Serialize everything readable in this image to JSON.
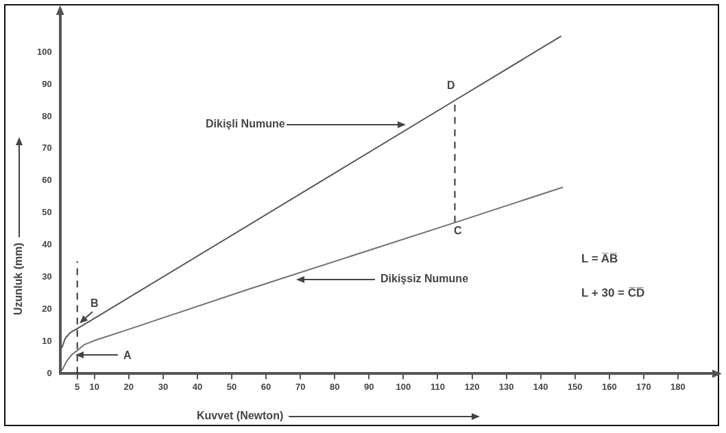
{
  "chart_data": {
    "type": "line",
    "xlabel": "Kuvvet (Newton)",
    "ylabel": "Uzunluk (mm)",
    "xlim": [
      0,
      190
    ],
    "xticks": [
      5,
      10,
      20,
      30,
      40,
      50,
      60,
      70,
      80,
      90,
      100,
      110,
      120,
      130,
      140,
      150,
      160,
      170,
      180
    ],
    "ylim": [
      0,
      112
    ],
    "yticks": [
      0,
      10,
      20,
      30,
      40,
      50,
      60,
      70,
      80,
      90,
      100
    ],
    "grid": false,
    "legend": false,
    "marker": "none",
    "series": [
      {
        "color": "#555555",
        "x": [
          0.5,
          1.5,
          3,
          5,
          10,
          115,
          146
        ],
        "values": [
          8,
          11,
          12.8,
          14,
          17.2,
          85,
          105
        ]
      },
      {
        "color": "#707070",
        "x": [
          0.5,
          2,
          3.5,
          5,
          7,
          10,
          20,
          55,
          115,
          146.5
        ],
        "values": [
          1,
          4,
          6,
          7.2,
          9,
          10.3,
          13.8,
          26.3,
          47,
          58
        ]
      },
      {
        "type": "line",
        "line_style": "dashed",
        "color": "#333333",
        "x": [
          5,
          5
        ],
        "values": [
          0,
          35
        ]
      },
      {
        "type": "line",
        "line_style": "dashed",
        "color": "#333333",
        "x": [
          115,
          115
        ],
        "values": [
          47,
          85
        ]
      }
    ],
    "annotations": [
      "Dikişli Numune",
      "Dikişsiz Numune",
      "A",
      "B",
      "C",
      "D",
      "L = A̅B̅",
      "L + 30 = C̅D̅"
    ]
  }
}
